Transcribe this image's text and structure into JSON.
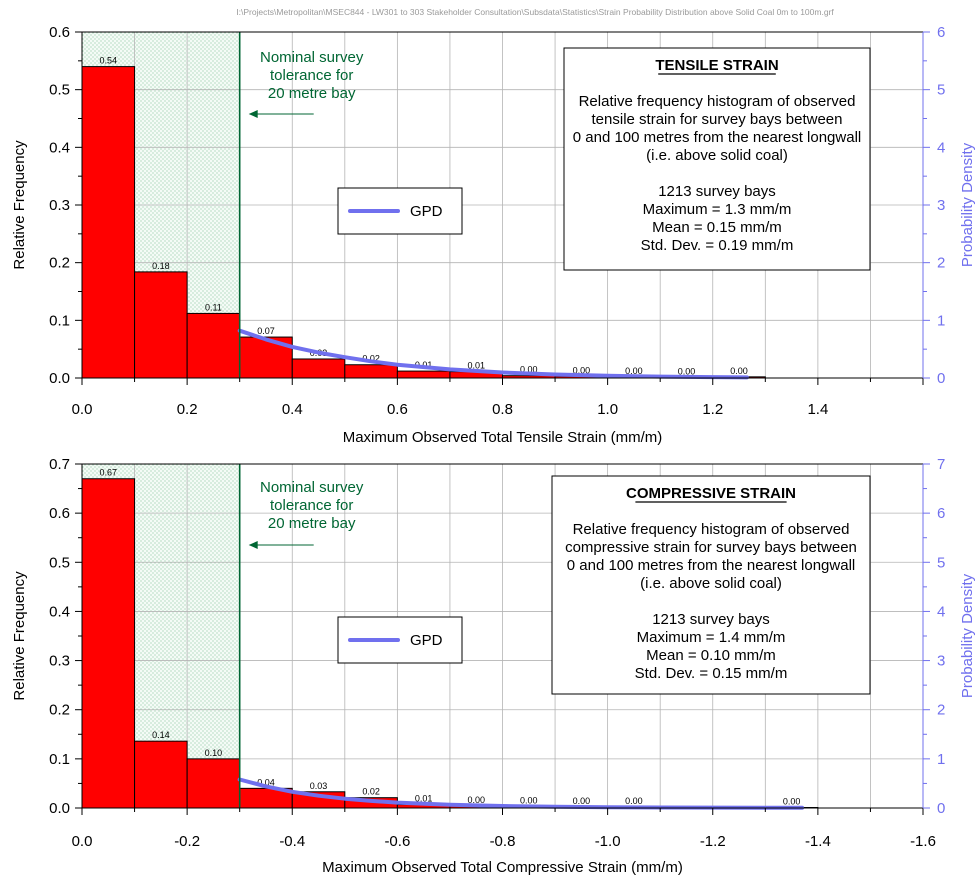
{
  "file_path": "I:\\Projects\\Metropolitan\\MSEC844 - LW301 to 303 Stakeholder Consultation\\Subsdata\\Statistics\\Strain Probability Distribution above Solid Coal 0m to 100m.grf",
  "colors": {
    "bar_fill": "#ff0000",
    "gpd_line": "#7070ee",
    "tolerance_line": "#006633",
    "right_axis": "#7070ee",
    "grid": "#b4b4b4"
  },
  "chart_data": [
    {
      "type": "bar",
      "xlabel": "Maximum Observed Total Tensile Strain (mm/m)",
      "ylabel": "Relative Frequency",
      "y2label": "Probability Density",
      "xlim": [
        0,
        1.6
      ],
      "ylim": [
        0,
        0.6
      ],
      "y2lim": [
        0,
        6
      ],
      "x_ticks": [
        "0.0",
        "0.2",
        "0.4",
        "0.6",
        "0.8",
        "1.0",
        "1.2",
        "1.4"
      ],
      "y_ticks": [
        "0.0",
        "0.1",
        "0.2",
        "0.3",
        "0.4",
        "0.5",
        "0.6"
      ],
      "y2_ticks": [
        "0",
        "1",
        "2",
        "3",
        "4",
        "5",
        "6"
      ],
      "bin_width": 0.1,
      "bins": [
        0.0,
        0.1,
        0.2,
        0.3,
        0.4,
        0.5,
        0.6,
        0.7,
        0.8,
        0.9,
        1.0,
        1.1,
        1.2
      ],
      "values": [
        0.54,
        0.184,
        0.112,
        0.071,
        0.033,
        0.023,
        0.012,
        0.011,
        0.004,
        0.003,
        0.002,
        0.001,
        0.002
      ],
      "value_labels": [
        "0.54",
        "0.18",
        "0.11",
        "0.07",
        "0.03",
        "0.02",
        "0.01",
        "0.01",
        "0.00",
        "0.00",
        "0.00",
        "0.00",
        "0.00"
      ],
      "gpd": {
        "name": "GPD",
        "x": [
          0.3,
          0.35,
          0.4,
          0.45,
          0.5,
          0.55,
          0.6,
          0.7,
          0.8,
          0.9,
          1.0,
          1.1,
          1.2,
          1.265
        ],
        "y": [
          0.82,
          0.67,
          0.54,
          0.44,
          0.36,
          0.29,
          0.23,
          0.15,
          0.095,
          0.06,
          0.038,
          0.024,
          0.015,
          0.011
        ]
      },
      "tolerance": {
        "x": 0.3,
        "text": [
          "Nominal survey",
          "tolerance for",
          "20 metre bay"
        ]
      },
      "info_box": {
        "title": "TENSILE STRAIN",
        "lines": [
          "Relative frequency histogram of observed",
          "tensile strain for survey bays between",
          "0 and 100 metres from the nearest longwall",
          "(i.e. above solid coal)",
          "",
          "1213 survey bays",
          "Maximum = 1.3 mm/m",
          "Mean = 0.15 mm/m",
          "Std. Dev. = 0.19 mm/m"
        ]
      },
      "legend": {
        "entry": "GPD",
        "placement": "center-left"
      }
    },
    {
      "type": "bar",
      "xlabel": "Maximum Observed Total Compressive Strain (mm/m)",
      "ylabel": "Relative Frequency",
      "y2label": "Probability Density",
      "xlim": [
        0,
        -1.6
      ],
      "ylim": [
        0,
        0.7
      ],
      "y2lim": [
        0,
        7
      ],
      "x_ticks": [
        "0.0",
        "-0.2",
        "-0.4",
        "-0.6",
        "-0.8",
        "-1.0",
        "-1.2",
        "-1.4",
        "-1.6"
      ],
      "y_ticks": [
        "0.0",
        "0.1",
        "0.2",
        "0.3",
        "0.4",
        "0.5",
        "0.6",
        "0.7"
      ],
      "y2_ticks": [
        "0",
        "1",
        "2",
        "3",
        "4",
        "5",
        "6",
        "7"
      ],
      "bin_width": 0.1,
      "bins": [
        0.0,
        -0.1,
        -0.2,
        -0.3,
        -0.4,
        -0.5,
        -0.6,
        -0.7,
        -0.8,
        -0.9,
        -1.0,
        -1.3
      ],
      "values": [
        0.67,
        0.136,
        0.1,
        0.04,
        0.033,
        0.021,
        0.007,
        0.004,
        0.003,
        0.002,
        0.002,
        0.001
      ],
      "value_labels": [
        "0.67",
        "0.14",
        "0.10",
        "0.04",
        "0.03",
        "0.02",
        "0.01",
        "0.00",
        "0.00",
        "0.00",
        "0.00",
        "0.00"
      ],
      "gpd": {
        "name": "GPD",
        "x": [
          -0.3,
          -0.35,
          -0.4,
          -0.45,
          -0.5,
          -0.55,
          -0.6,
          -0.7,
          -0.8,
          -0.9,
          -1.0,
          -1.1,
          -1.2,
          -1.3,
          -1.37
        ],
        "y": [
          0.58,
          0.44,
          0.33,
          0.25,
          0.19,
          0.145,
          0.11,
          0.065,
          0.04,
          0.025,
          0.016,
          0.011,
          0.008,
          0.006,
          0.005
        ]
      },
      "tolerance": {
        "x": -0.3,
        "text": [
          "Nominal survey",
          "tolerance for",
          "20 metre bay"
        ]
      },
      "info_box": {
        "title": "COMPRESSIVE STRAIN",
        "lines": [
          "Relative frequency histogram of observed",
          "compressive strain for survey bays between",
          "0 and 100 metres from the nearest longwall",
          "(i.e. above solid coal)",
          "",
          "1213 survey bays",
          "Maximum = 1.4 mm/m",
          "Mean = 0.10 mm/m",
          "Std. Dev. = 0.15 mm/m"
        ]
      },
      "legend": {
        "entry": "GPD",
        "placement": "center-left"
      }
    }
  ]
}
